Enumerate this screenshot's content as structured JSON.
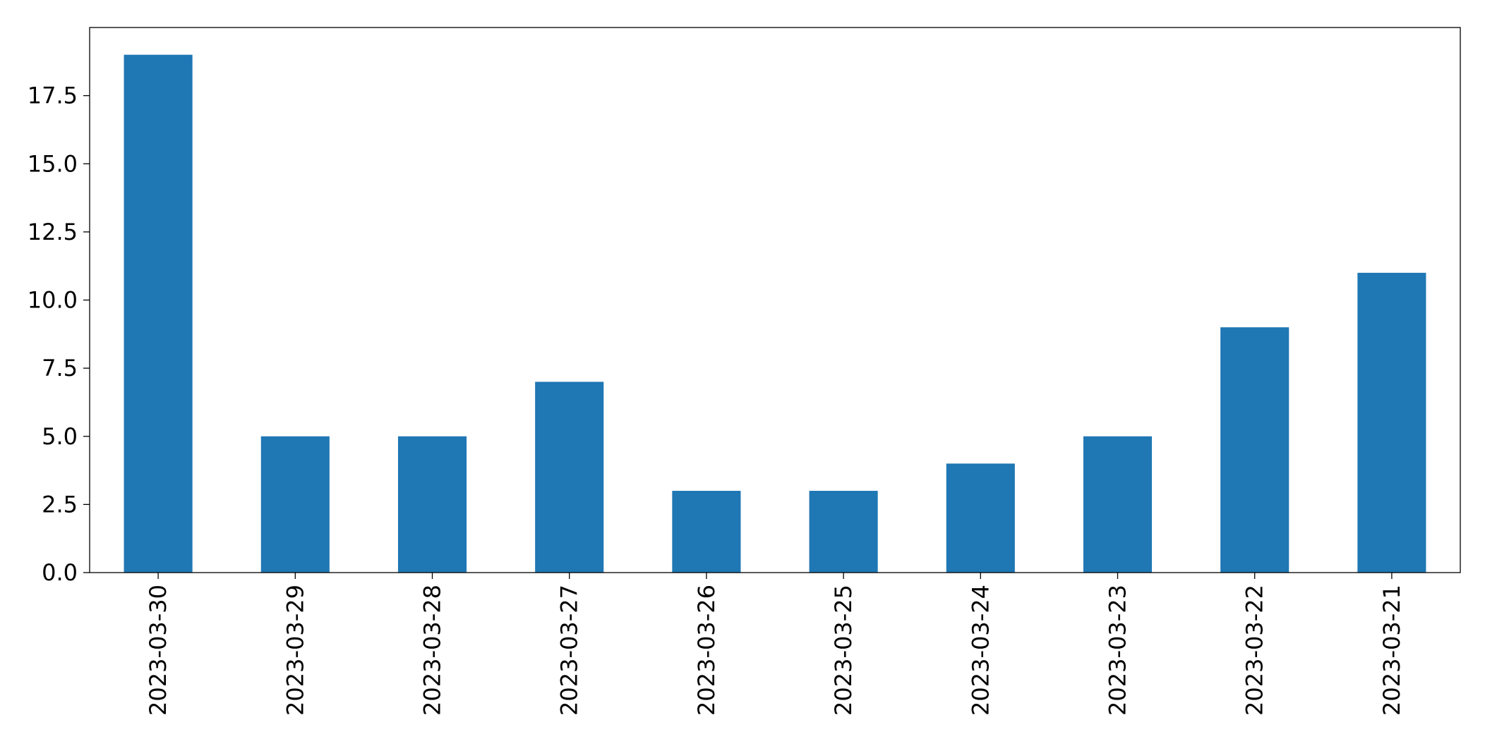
{
  "chart_data": {
    "type": "bar",
    "title": "",
    "xlabel": "",
    "ylabel": "",
    "categories": [
      "2023-03-30",
      "2023-03-29",
      "2023-03-28",
      "2023-03-27",
      "2023-03-26",
      "2023-03-25",
      "2023-03-24",
      "2023-03-23",
      "2023-03-22",
      "2023-03-21"
    ],
    "values": [
      19,
      5,
      5,
      7,
      3,
      3,
      4,
      5,
      9,
      11
    ],
    "ylim": [
      0,
      20
    ],
    "yticks": [
      "0.0",
      "2.5",
      "5.0",
      "7.5",
      "10.0",
      "12.5",
      "15.0",
      "17.5"
    ],
    "bar_color": "#1f77b4",
    "grid": false,
    "legend": null
  }
}
